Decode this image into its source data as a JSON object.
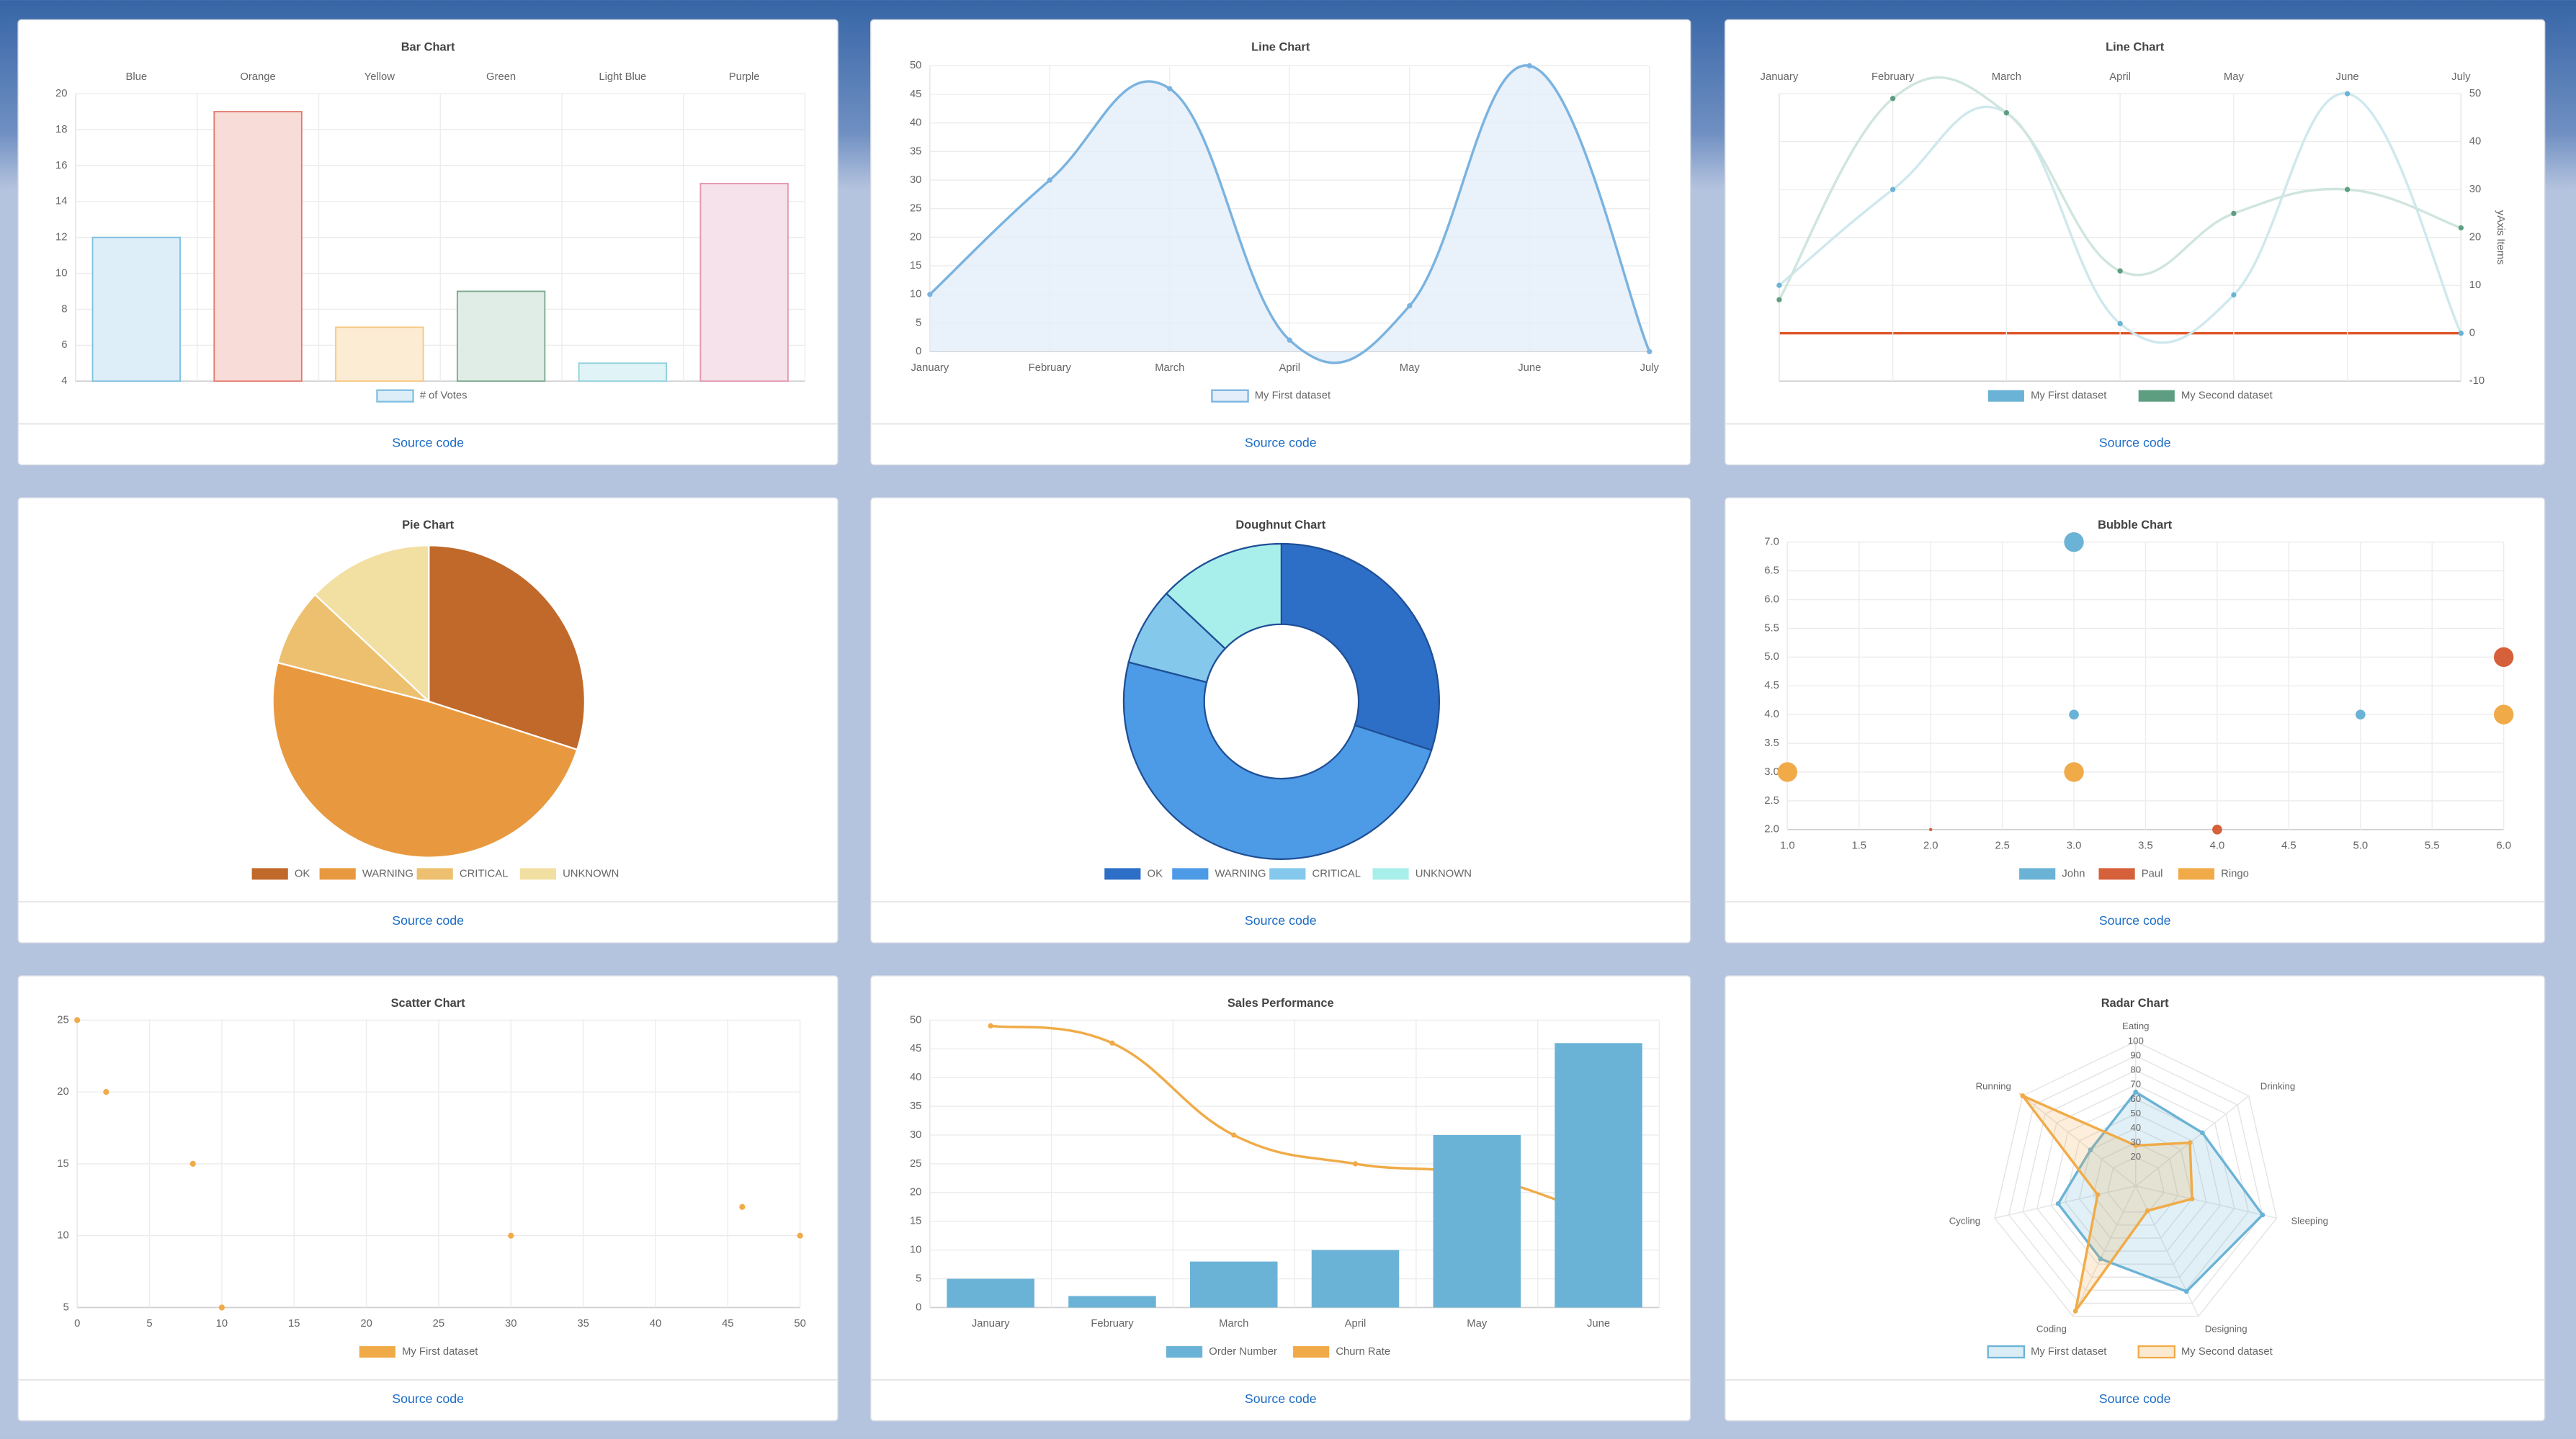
{
  "chart_data": [
    {
      "type": "bar",
      "title": "Bar Chart",
      "categories": [
        "Blue",
        "Orange",
        "Yellow",
        "Green",
        "Light Blue",
        "Purple"
      ],
      "series": [
        {
          "name": "# of Votes",
          "values": [
            12,
            19,
            7,
            9,
            5,
            15
          ],
          "colors": [
            "#ddeef8",
            "#f8dcd8",
            "#fdecd4",
            "#e0ece6",
            "#e0f3f6",
            "#f6e2ea"
          ],
          "border_colors": [
            "#7fbfe0",
            "#e07a6e",
            "#f5c780",
            "#7aa88e",
            "#8fd0da",
            "#e396b0"
          ]
        }
      ],
      "ylim": [
        4,
        20
      ],
      "yticks": [
        4,
        6,
        8,
        10,
        12,
        14,
        16,
        18,
        20
      ],
      "x_axis_position": "top",
      "grid": true,
      "source_link": "Source code"
    },
    {
      "type": "line",
      "title": "Line Chart",
      "categories": [
        "January",
        "February",
        "March",
        "April",
        "May",
        "June",
        "July"
      ],
      "series": [
        {
          "name": "My First dataset",
          "color": "#7ab3e0",
          "fill_color": "#e3eefa",
          "values": [
            10,
            30,
            46,
            2,
            8,
            50,
            0
          ]
        }
      ],
      "ylim": [
        0,
        50
      ],
      "yticks": [
        0,
        5,
        10,
        15,
        20,
        25,
        30,
        35,
        40,
        45,
        50
      ],
      "grid": true,
      "source_link": "Source code"
    },
    {
      "type": "line",
      "title": "Line Chart",
      "categories": [
        "January",
        "February",
        "March",
        "April",
        "May",
        "June",
        "July"
      ],
      "series": [
        {
          "name": "My First dataset",
          "color": "#6bb3d6",
          "line_color": "#cfe8ee",
          "values": [
            10,
            30,
            46,
            2,
            8,
            50,
            0
          ]
        },
        {
          "name": "My Second dataset",
          "color": "#5e9e80",
          "line_color": "#cfe5de",
          "values": [
            7,
            49,
            46,
            13,
            25,
            30,
            22
          ]
        }
      ],
      "ylim": [
        -10,
        50
      ],
      "yticks": [
        -10,
        0,
        10,
        20,
        30,
        40,
        50
      ],
      "y_axis_position": "right",
      "y_label": "yAxis Items",
      "x_axis_position": "top",
      "zero_line_color": "#e0572a",
      "grid": true,
      "source_link": "Source code"
    },
    {
      "type": "pie",
      "title": "Pie Chart",
      "categories": [
        "OK",
        "WARNING",
        "CRITICAL",
        "UNKNOWN"
      ],
      "values": [
        30,
        49,
        8,
        13
      ],
      "colors": [
        "#c0692b",
        "#e8993f",
        "#edc06f",
        "#f2dfa2"
      ],
      "border_color": "#ffffff",
      "source_link": "Source code"
    },
    {
      "type": "doughnut",
      "title": "Doughnut Chart",
      "categories": [
        "OK",
        "WARNING",
        "CRITICAL",
        "UNKNOWN"
      ],
      "values": [
        30,
        49,
        8,
        13
      ],
      "colors": [
        "#2d6fc7",
        "#4d9be6",
        "#84c9ec",
        "#a8eeeb"
      ],
      "border_color": "#1f4f96",
      "source_link": "Source code"
    },
    {
      "type": "bubble",
      "title": "Bubble Chart",
      "series": [
        {
          "name": "John",
          "color": "#6bb3d6",
          "x": [
            3,
            3,
            5
          ],
          "y": [
            7,
            4,
            4
          ],
          "r": [
            6,
            3,
            3
          ]
        },
        {
          "name": "Paul",
          "color": "#d5603a",
          "x": [
            6,
            2,
            4
          ],
          "y": [
            5,
            2,
            2
          ],
          "r": [
            6,
            1,
            3
          ]
        },
        {
          "name": "Ringo",
          "color": "#f0ab48",
          "x": [
            6,
            1,
            3
          ],
          "y": [
            4,
            3,
            3
          ],
          "r": [
            6,
            6,
            6
          ]
        }
      ],
      "xlim": [
        1,
        6
      ],
      "xticks": [
        {
          "value": 1,
          "label": "1.0"
        },
        1.5,
        {
          "value": 2,
          "label": "2.0"
        },
        2.5,
        {
          "value": 3,
          "label": "3.0"
        },
        3.5,
        {
          "value": 4,
          "label": "4.0"
        },
        4.5,
        {
          "value": 5,
          "label": "5.0"
        },
        5.5,
        {
          "value": 6,
          "label": "6.0"
        }
      ],
      "ylim": [
        2,
        7
      ],
      "yticks": [
        {
          "value": 2,
          "label": "2.0"
        },
        2.5,
        {
          "value": 3,
          "label": "3.0"
        },
        3.5,
        {
          "value": 4,
          "label": "4.0"
        },
        4.5,
        {
          "value": 5,
          "label": "5.0"
        },
        5.5,
        {
          "value": 6,
          "label": "6.0"
        },
        6.5,
        {
          "value": 7,
          "label": "7.0"
        }
      ],
      "grid": true,
      "source_link": "Source code"
    },
    {
      "type": "scatter",
      "title": "Scatter Chart",
      "series": [
        {
          "name": "My First dataset",
          "color": "#f0ab48",
          "x": [
            0,
            2,
            8,
            10,
            30,
            46,
            50
          ],
          "y": [
            25,
            20,
            15,
            5,
            10,
            12,
            10
          ]
        }
      ],
      "xlim": [
        0,
        50
      ],
      "xticks": [
        0,
        5,
        10,
        15,
        20,
        25,
        30,
        35,
        40,
        45,
        50
      ],
      "ylim": [
        5,
        25
      ],
      "yticks": [
        5,
        10,
        15,
        20,
        25
      ],
      "grid": true,
      "source_link": "Source code"
    },
    {
      "type": "bar",
      "title": "Sales Performance",
      "categories": [
        "January",
        "February",
        "March",
        "April",
        "May",
        "June"
      ],
      "series": [
        {
          "name": "Order Number",
          "color": "#6bb3d6",
          "values": [
            5,
            2,
            8,
            10,
            30,
            46
          ]
        },
        {
          "name": "Churn Rate",
          "type": "line",
          "color": "#f0ab48",
          "values": [
            49,
            46,
            30,
            25,
            23,
            16
          ]
        }
      ],
      "ylim": [
        0,
        50
      ],
      "yticks": [
        0,
        5,
        10,
        15,
        20,
        25,
        30,
        35,
        40,
        45,
        50
      ],
      "grid": true,
      "source_link": "Source code"
    },
    {
      "type": "radar",
      "title": "Radar Chart",
      "categories": [
        "Eating",
        "Drinking",
        "Sleeping",
        "Designing",
        "Coding",
        "Cycling",
        "Running"
      ],
      "series": [
        {
          "name": "My First dataset",
          "color": "#6bb3d6",
          "values": [
            65,
            59,
            90,
            81,
            56,
            55,
            40
          ]
        },
        {
          "name": "My Second dataset",
          "color": "#f0ab48",
          "values": [
            28,
            48,
            40,
            19,
            96,
            27,
            100
          ]
        }
      ],
      "rlim": [
        0,
        100
      ],
      "rticks": [
        20,
        30,
        40,
        50,
        60,
        70,
        80,
        90,
        100
      ],
      "source_link": "Source code"
    }
  ]
}
